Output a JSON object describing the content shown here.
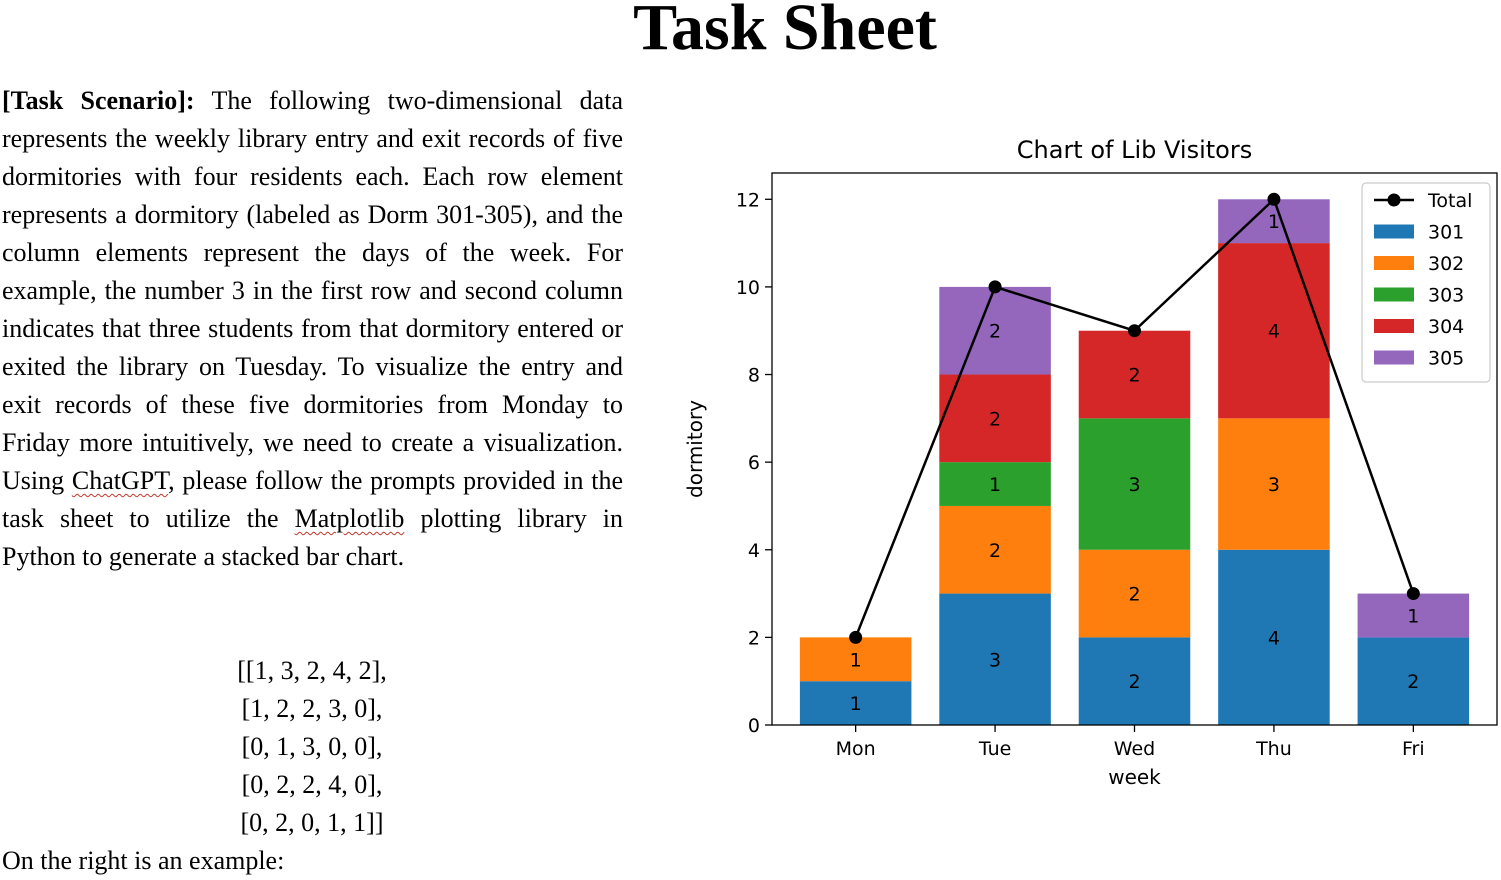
{
  "document": {
    "title": "Task Sheet",
    "scenario_label": "[Task Scenario]:",
    "scenario_text_1": " The following two-dimensional data represents the weekly library entry and exit records of five dormitories with four residents each. Each row element represents a dormitory (labeled as Dorm 301-305), and the column elements represent the days of the week. For example, the number 3 in the first row and second column indicates that three students from that dormitory entered or exited the library on Tuesday. To visualize the entry and exit records of these five dormitories from Monday to Friday more intuitively, we need to create a visualization. Using ",
    "chatgpt": "ChatGPT",
    "scenario_text_2": ", please follow the prompts provided in the task sheet to utilize the ",
    "matplotlib": "Matplotlib",
    "scenario_text_3": " plotting library in Python to generate a stacked bar chart.",
    "matrix_rows": [
      "[[1, 3, 2, 4, 2],",
      "[1, 2, 2, 3, 0],",
      "[0, 1, 3, 0, 0],",
      "[0, 2, 2, 4, 0],",
      "[0, 2, 0, 1, 1]]"
    ],
    "footer": "On the right is an example:"
  },
  "chart_data": {
    "type": "bar",
    "stacked": true,
    "title": "Chart of Lib Visitors",
    "xlabel": "week",
    "ylabel": "dormitory",
    "categories": [
      "Mon",
      "Tue",
      "Wed",
      "Thu",
      "Fri"
    ],
    "ylim": [
      0,
      12.6
    ],
    "yticks": [
      0,
      2,
      4,
      6,
      8,
      10,
      12
    ],
    "series": [
      {
        "name": "301",
        "color": "#1f77b4",
        "values": [
          1,
          3,
          2,
          4,
          2
        ]
      },
      {
        "name": "302",
        "color": "#ff7f0e",
        "values": [
          1,
          2,
          2,
          3,
          0
        ]
      },
      {
        "name": "303",
        "color": "#2ca02c",
        "values": [
          0,
          1,
          3,
          0,
          0
        ]
      },
      {
        "name": "304",
        "color": "#d62728",
        "values": [
          0,
          2,
          2,
          4,
          0
        ]
      },
      {
        "name": "305",
        "color": "#9467bd",
        "values": [
          0,
          2,
          0,
          1,
          1
        ]
      }
    ],
    "total_line": {
      "name": "Total",
      "color": "#000000",
      "values": [
        2,
        10,
        9,
        12,
        3
      ]
    },
    "legend_position": "top-right"
  }
}
